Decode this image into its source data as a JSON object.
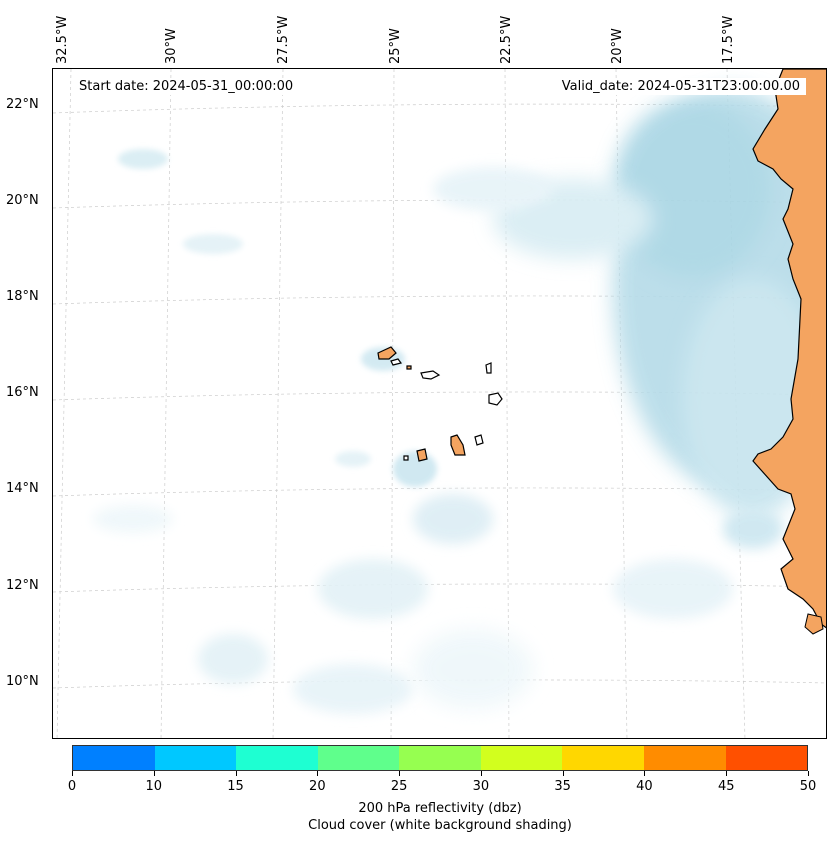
{
  "map": {
    "start_date": "Start date: 2024-05-31_00:00:00",
    "valid_date": "Valid_date: 2024-05-31T23:00:00.00",
    "lon_labels": [
      "32.5°W",
      "30°W",
      "27.5°W",
      "25°W",
      "22.5°W",
      "20°W",
      "17.5°W"
    ],
    "lat_labels": [
      "22°N",
      "20°N",
      "18°N",
      "16°N",
      "14°N",
      "12°N",
      "10°N"
    ],
    "colors": {
      "land": "#f4a460",
      "cloud_light": "#e6f3f8",
      "cloud_medium": "#b5dbe8",
      "coastline": "#000000",
      "gridline": "#cccccc"
    }
  },
  "colorbar": {
    "ticks": [
      "0",
      "10",
      "15",
      "20",
      "25",
      "30",
      "35",
      "40",
      "45",
      "50"
    ],
    "colors": [
      "#0080ff",
      "#00c8ff",
      "#1effd2",
      "#5fff8c",
      "#96ff50",
      "#d2ff1e",
      "#ffd700",
      "#ff8c00",
      "#ff5000"
    ],
    "label_line1": "200 hPa reflectivity (dbz)",
    "label_line2": "Cloud cover (white background shading)"
  }
}
